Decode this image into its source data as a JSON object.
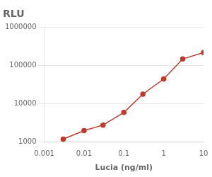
{
  "chart_data": {
    "type": "line",
    "title": "RLU",
    "xlabel": "Lucia (ng/ml)",
    "x": [
      0.003,
      0.01,
      0.03,
      0.1,
      0.3,
      1.0,
      3.0,
      10.0
    ],
    "values": [
      1200,
      2000,
      2800,
      6000,
      18000,
      45000,
      150000,
      220000
    ],
    "color": "#c0392b",
    "marker": "circle",
    "xlim": [
      0.001,
      10
    ],
    "ylim": [
      1000,
      1000000
    ],
    "xticks": [
      0.001,
      0.01,
      0.1,
      1,
      10
    ],
    "yticks": [
      1000,
      10000,
      100000,
      1000000
    ],
    "log": true,
    "grid": "y"
  }
}
